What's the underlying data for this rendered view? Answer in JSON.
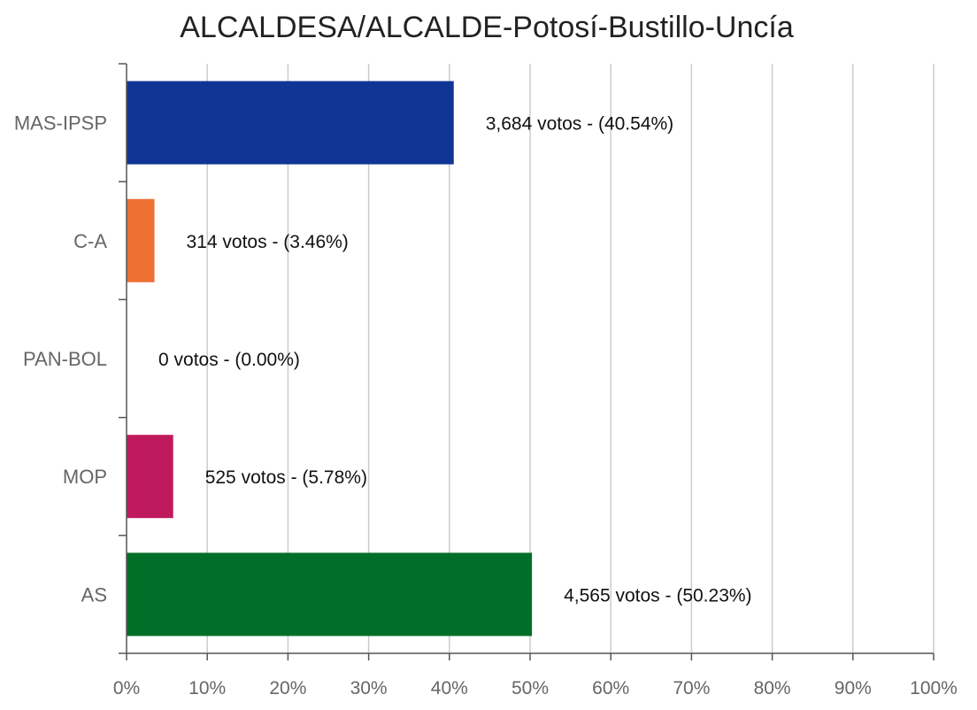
{
  "chart_data": {
    "type": "bar",
    "orientation": "horizontal",
    "title": "ALCALDESA/ALCALDE-Potosí-Bustillo-Uncía",
    "categories": [
      "MAS-IPSP",
      "C-A",
      "PAN-BOL",
      "MOP",
      "AS"
    ],
    "votes": [
      3684,
      314,
      0,
      525,
      4565
    ],
    "values": [
      40.54,
      3.46,
      0.0,
      5.78,
      50.23
    ],
    "data_labels": [
      "3,684 votos - (40.54%)",
      "314 votos - (3.46%)",
      "0 votos - (0.00%)",
      "525 votos - (5.78%)",
      "4,565 votos - (50.23%)"
    ],
    "colors": [
      "#103595",
      "#ee7035",
      "#999999",
      "#c01a5e",
      "#026f29"
    ],
    "xlim": [
      0,
      100
    ],
    "x_ticks": [
      0,
      10,
      20,
      30,
      40,
      50,
      60,
      70,
      80,
      90,
      100
    ],
    "x_tick_labels": [
      "0%",
      "10%",
      "20%",
      "30%",
      "40%",
      "50%",
      "60%",
      "70%",
      "80%",
      "90%",
      "100%"
    ],
    "grid": true,
    "legend": "none"
  }
}
